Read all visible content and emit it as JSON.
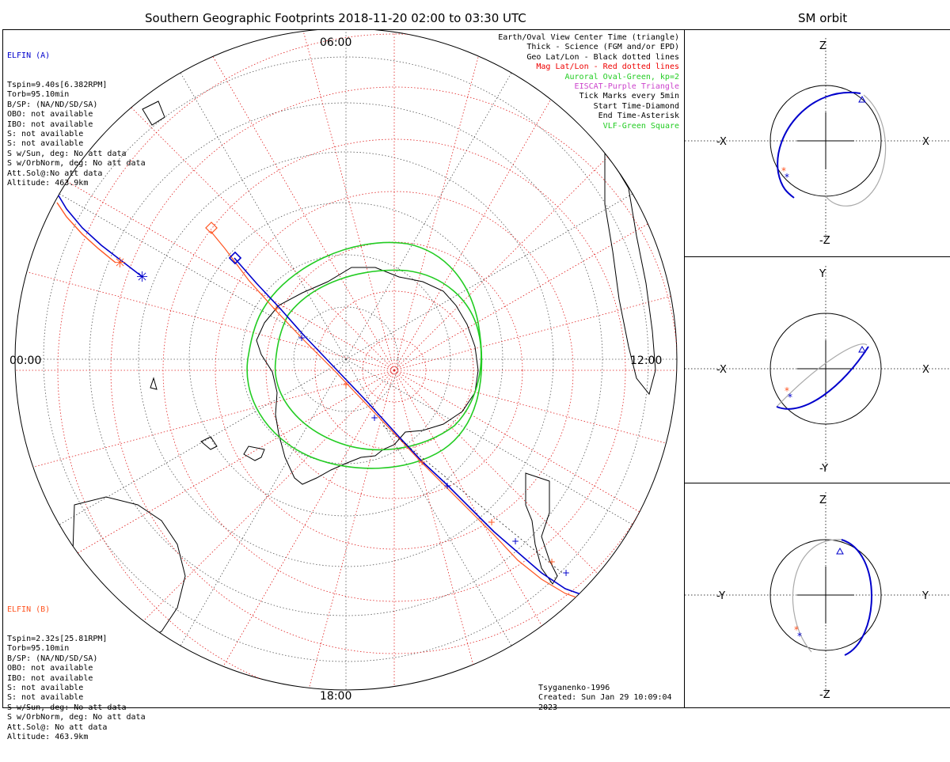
{
  "main_title": "Southern Geographic Footprints 2018-11-20 02:00 to 03:30 UTC",
  "side_title": "SM orbit",
  "hour_labels": {
    "top": "06:00",
    "left": "00:00",
    "right": "12:00",
    "bottom": "18:00"
  },
  "elfin_a": {
    "title": "ELFIN (A)",
    "color": "#0000cc",
    "lines": [
      "Tspin=9.40s[6.382RPM]",
      "Torb=95.10min",
      "B/SP: (NA/ND/SD/SA)",
      "OBO: not available",
      "IBO: not available",
      "S: not available",
      "S: not available",
      "S w/Sun, deg: No att data",
      "S w/OrbNorm, deg: No att data",
      "Att.Sol@:No att data",
      "Altitude: 463.9km"
    ]
  },
  "elfin_b": {
    "title": "ELFIN (B)",
    "color": "#ff5522",
    "lines": [
      "Tspin=2.32s[25.81RPM]",
      "Torb=95.10min",
      "B/SP: (NA/ND/SD/SA)",
      "OBO: not available",
      "IBO: not available",
      "S: not available",
      "S: not available",
      "S w/Sun, deg: No att data",
      "S w/OrbNorm, deg: No att data",
      "Att.Sol@: No att data",
      "Altitude: 463.9km"
    ]
  },
  "legend": [
    {
      "text": "Earth/Oval View Center Time (triangle)",
      "color": "#000000"
    },
    {
      "text": "Thick - Science (FGM and/or EPD)",
      "color": "#000000"
    },
    {
      "text": "Geo Lat/Lon - Black dotted lines",
      "color": "#000000"
    },
    {
      "text": "Mag Lat/Lon - Red dotted lines",
      "color": "#ee0000"
    },
    {
      "text": "Auroral Oval-Green, kp=2",
      "color": "#22cc22"
    },
    {
      "text": "EISCAT-Purple Triangle",
      "color": "#cc44cc"
    },
    {
      "text": "Tick Marks every 5min",
      "color": "#000000"
    },
    {
      "text": "Start Time-Diamond",
      "color": "#000000"
    },
    {
      "text": "End Time-Asterisk",
      "color": "#000000"
    },
    {
      "text": "VLF-Green Square",
      "color": "#22cc22"
    }
  ],
  "model": "Tsyganenko-1996",
  "created": "Created: Sun Jan 29 10:09:04 2023",
  "orbit_panels": [
    {
      "left": "-X",
      "right": "X",
      "top": "Z",
      "bottom": "-Z"
    },
    {
      "left": "-X",
      "right": "X",
      "top": "Y",
      "bottom": "-Y"
    },
    {
      "left": "-Y",
      "right": "Y",
      "top": "Z",
      "bottom": "-Z"
    }
  ]
}
